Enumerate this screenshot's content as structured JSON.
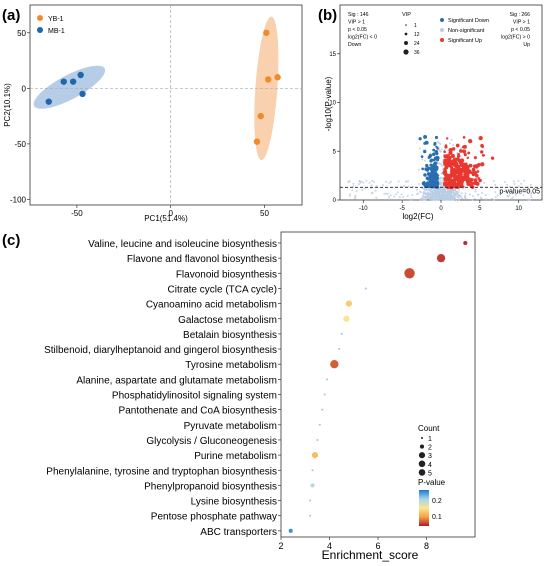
{
  "panels": {
    "a": "(a)",
    "b": "(b)",
    "c": "(c)"
  },
  "chart_data": [
    {
      "type": "scatter",
      "panel": "(a)",
      "xlabel": "PC1(51.4%)",
      "ylabel": "PC2(10.1%)",
      "xlim": [
        -75,
        70
      ],
      "ylim": [
        -105,
        75
      ],
      "xticks": [
        -50,
        0,
        50
      ],
      "yticks": [
        50,
        0,
        -50,
        -100
      ],
      "grid": false,
      "legend_position": "top-left",
      "series": [
        {
          "name": "YB-1",
          "color": "#f08a2c",
          "ellipse_color": "#f8c9a1",
          "points": [
            [
              51,
              50
            ],
            [
              52,
              8
            ],
            [
              57,
              10
            ],
            [
              48,
              -25
            ],
            [
              46,
              -48
            ]
          ]
        },
        {
          "name": "MB-1",
          "color": "#2166ac",
          "ellipse_color": "#a9c4e3",
          "points": [
            [
              -48,
              12
            ],
            [
              -52,
              6
            ],
            [
              -57,
              6
            ],
            [
              -47,
              -5
            ],
            [
              -65,
              -12
            ]
          ]
        }
      ]
    },
    {
      "type": "scatter",
      "panel": "(b)",
      "xlabel": "log2(FC)",
      "ylabel": "-log10(P-value)",
      "xlim": [
        -13,
        13
      ],
      "ylim": [
        0,
        20
      ],
      "xticks": [
        -10,
        -5,
        0,
        5,
        10
      ],
      "yticks": [
        0,
        5,
        10,
        15
      ],
      "threshold_label": "p-value=0.05",
      "threshold_y": 1.3,
      "left_note": [
        "Sig : 146",
        "VIP > 1",
        "p < 0.05",
        "log2(FC) < 0",
        "Down"
      ],
      "right_note": [
        "Sig : 266",
        "VIP > 1",
        "p < 0.05",
        "log2(FC) > 0",
        "Up"
      ],
      "size_legend": {
        "title": "VIP",
        "values": [
          "1",
          "12",
          "24",
          "36"
        ]
      },
      "series": [
        {
          "name": "Significant Down",
          "color": "#2a6db1"
        },
        {
          "name": "Non-significant",
          "color": "#b9cde4"
        },
        {
          "name": "Significant Up",
          "color": "#e8382f"
        }
      ]
    },
    {
      "type": "scatter",
      "panel": "(c)",
      "xlabel": "Enrichment_score",
      "xlim": [
        2,
        10
      ],
      "xticks": [
        2,
        4,
        6,
        8
      ],
      "categories": [
        "Valine, leucine and isoleucine biosynthesis",
        "Flavone and flavonol biosynthesis",
        "Flavonoid biosynthesis",
        "Citrate cycle (TCA cycle)",
        "Cyanoamino acid metabolism",
        "Galactose metabolism",
        "Betalain biosynthesis",
        "Stilbenoid, diarylheptanoid and gingerol biosynthesis",
        "Tyrosine metabolism",
        "Alanine, aspartate and glutamate metabolism",
        "Phosphatidylinositol signaling system",
        "Pantothenate and CoA biosynthesis",
        "Pyruvate metabolism",
        "Glycolysis / Gluconeogenesis",
        "Purine metabolism",
        "Phenylalanine, tyrosine and tryptophan biosynthesis",
        "Phenylpropanoid biosynthesis",
        "Lysine biosynthesis",
        "Pentose phosphate pathway",
        "ABC transporters"
      ],
      "enrichment": [
        9.6,
        8.6,
        7.3,
        5.5,
        4.8,
        4.7,
        4.5,
        4.4,
        4.2,
        3.9,
        3.8,
        3.7,
        3.6,
        3.5,
        3.4,
        3.3,
        3.3,
        3.2,
        3.2,
        2.4
      ],
      "count": [
        2,
        4,
        5,
        1,
        3,
        3,
        1,
        1,
        4,
        1,
        1,
        1,
        1,
        1,
        3,
        1,
        2,
        1,
        1,
        2
      ],
      "pvalue": [
        0.01,
        0.02,
        0.03,
        0.2,
        0.11,
        0.13,
        0.2,
        0.2,
        0.04,
        0.2,
        0.2,
        0.2,
        0.2,
        0.2,
        0.1,
        0.2,
        0.18,
        0.2,
        0.2,
        0.25
      ],
      "count_legend": {
        "title": "Count",
        "values": [
          "1",
          "2",
          "3",
          "4",
          "5"
        ]
      },
      "color_legend": {
        "title": "P-value",
        "ticks": [
          "0.2",
          "0.1"
        ]
      }
    }
  ]
}
